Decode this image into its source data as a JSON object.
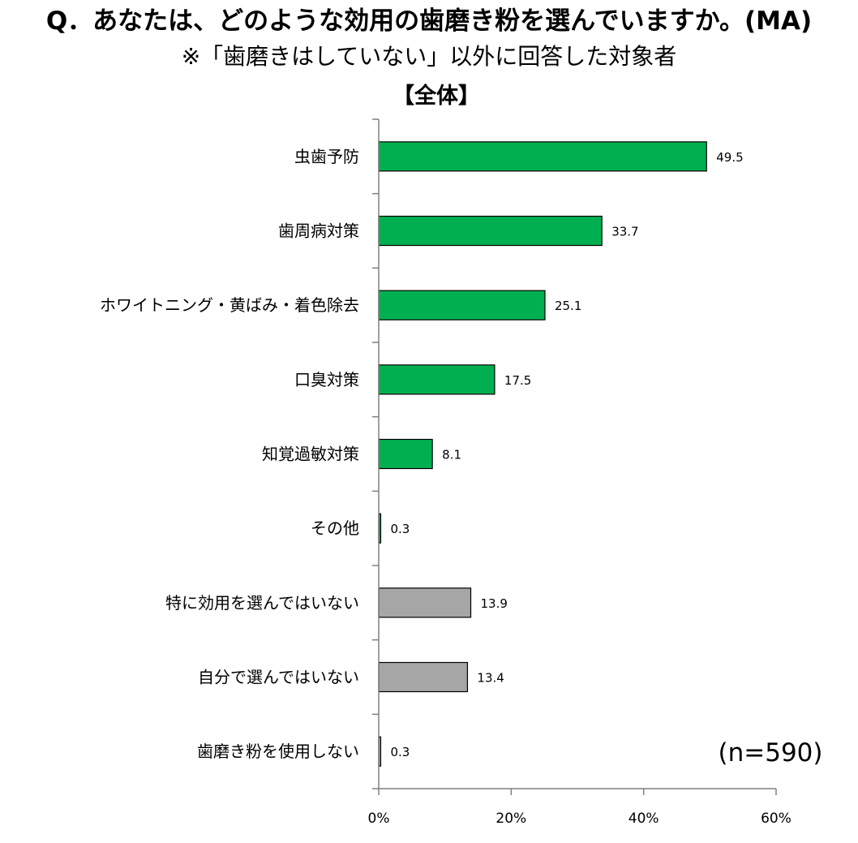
{
  "title": "Q．あなたは、どのような効用の歯磨き粉を選んでいますか。(MA)",
  "subtitle": "※「歯磨きはしていない」以外に回答した対象者",
  "section_label": "【全体】",
  "sample_size": "(n=590)",
  "colors": {
    "primary": "#00B050",
    "secondary": "#A6A6A6",
    "outline": "#000000",
    "axis": "#808080"
  },
  "chart_data": {
    "type": "bar",
    "orientation": "horizontal",
    "categories": [
      "虫歯予防",
      "歯周病対策",
      "ホワイトニング・黄ばみ・着色除去",
      "口臭対策",
      "知覚過敏対策",
      "その他",
      "特に効用を選んではいない",
      "自分で選んではいない",
      "歯磨き粉を使用しない"
    ],
    "values": [
      49.5,
      33.7,
      25.1,
      17.5,
      8.1,
      0.3,
      13.9,
      13.4,
      0.3
    ],
    "value_labels": [
      "49.5",
      "33.7",
      "25.1",
      "17.5",
      "8.1",
      "0.3",
      "13.9",
      "13.4",
      "0.3"
    ],
    "bar_color_groups": [
      "primary",
      "primary",
      "primary",
      "primary",
      "primary",
      "primary",
      "secondary",
      "secondary",
      "secondary"
    ],
    "xlim": [
      0,
      60
    ],
    "xticks": [
      0,
      20,
      40,
      60
    ],
    "xtick_labels": [
      "0%",
      "20%",
      "40%",
      "60%"
    ],
    "grid": false,
    "legend": "none"
  }
}
